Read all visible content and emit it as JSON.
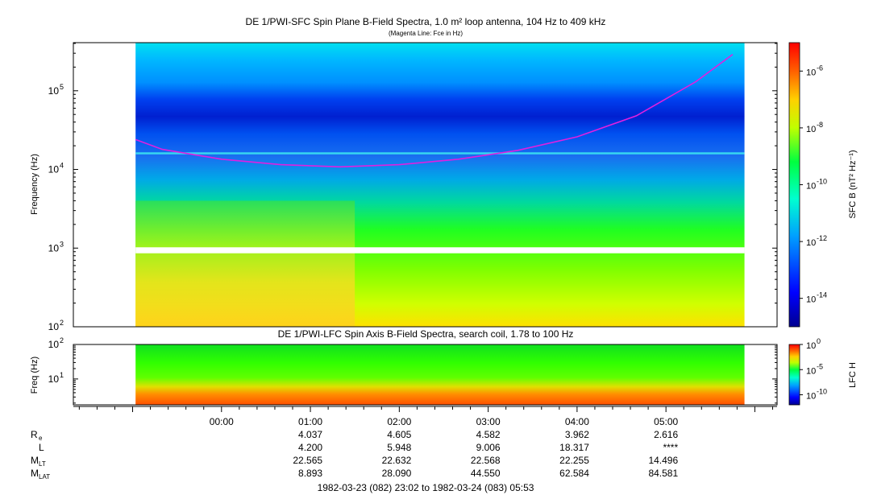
{
  "chart_data": [
    {
      "type": "heatmap",
      "title": "DE 1/PWI-SFC  Spin Plane B-Field Spectra, 1.0 m² loop antenna, 104 Hz to 409 kHz",
      "subtitle": "(Magenta Line: Fce in Hz)",
      "ylabel": "Frequency (Hz)",
      "yscale": "log",
      "ylim": [
        100,
        409000
      ],
      "y_ticks": [
        {
          "value": 100,
          "label": "10",
          "exp": "2"
        },
        {
          "value": 1000,
          "label": "10",
          "exp": "3"
        },
        {
          "value": 10000,
          "label": "10",
          "exp": "4"
        },
        {
          "value": 100000,
          "label": "10",
          "exp": "5"
        }
      ],
      "colorbar": {
        "label": "SFC B (nT² Hz⁻¹)",
        "scale": "log",
        "range": [
          1e-15,
          1e-05
        ],
        "ticks": [
          {
            "value": 1e-06,
            "label": "10",
            "exp": "-6"
          },
          {
            "value": 1e-08,
            "label": "10",
            "exp": "-8"
          },
          {
            "value": 1e-10,
            "label": "10",
            "exp": "-10"
          },
          {
            "value": 1e-12,
            "label": "10",
            "exp": "-12"
          },
          {
            "value": 1e-14,
            "label": "10",
            "exp": "-14"
          }
        ]
      },
      "data_start": "1982-03-23 23:02",
      "data_end": "1982-03-24 05:53",
      "fce_line_hz": [
        {
          "t": "23:02",
          "f": 24000
        },
        {
          "t": "23:20",
          "f": 18000
        },
        {
          "t": "00:00",
          "f": 13500
        },
        {
          "t": "00:40",
          "f": 11500
        },
        {
          "t": "01:20",
          "f": 10800
        },
        {
          "t": "02:00",
          "f": 11500
        },
        {
          "t": "02:40",
          "f": 13500
        },
        {
          "t": "03:20",
          "f": 17500
        },
        {
          "t": "04:00",
          "f": 26000
        },
        {
          "t": "04:40",
          "f": 48000
        },
        {
          "t": "05:20",
          "f": 130000
        },
        {
          "t": "05:45",
          "f": 290000
        }
      ],
      "legend": "none",
      "grid": false
    },
    {
      "type": "heatmap",
      "title": "DE 1/PWI-LFC  Spin Axis B-Field Spectra, search coil, 1.78 to 100 Hz",
      "ylabel": "Freq (Hz)",
      "yscale": "log",
      "ylim": [
        1.78,
        100
      ],
      "y_ticks": [
        {
          "value": 10,
          "label": "10",
          "exp": "1"
        },
        {
          "value": 100,
          "label": "10",
          "exp": "2"
        }
      ],
      "colorbar": {
        "label": "LFC H",
        "scale": "log",
        "range": [
          1e-12,
          1
        ],
        "ticks": [
          {
            "value": 1,
            "label": "10",
            "exp": "0"
          },
          {
            "value": 1e-05,
            "label": "10",
            "exp": "-5"
          },
          {
            "value": 1e-10,
            "label": "10",
            "exp": "-10"
          }
        ]
      },
      "legend": "none",
      "grid": false
    }
  ],
  "x_axis": {
    "range_start": "1982-03-23 22:20",
    "range_end": "1982-03-24 06:15",
    "tick_labels": [
      "00:00",
      "01:00",
      "02:00",
      "03:00",
      "04:00",
      "05:00"
    ],
    "tick_times": [
      "00:00",
      "01:00",
      "02:00",
      "03:00",
      "04:00",
      "05:00"
    ],
    "minor_step_minutes": 12
  },
  "ephemeris": [
    {
      "label": "R",
      "sub": "e",
      "values": [
        "4.037",
        "4.605",
        "4.582",
        "3.962",
        "2.616"
      ]
    },
    {
      "label": "L",
      "sub": "",
      "values": [
        "4.200",
        "5.948",
        "9.006",
        "18.317",
        "****"
      ]
    },
    {
      "label": "M",
      "sub": "LT",
      "values": [
        "22.565",
        "22.632",
        "22.568",
        "22.255",
        "14.496"
      ]
    },
    {
      "label": "M",
      "sub": "LAT",
      "values": [
        "8.893",
        "28.090",
        "44.550",
        "62.584",
        "84.581"
      ]
    }
  ],
  "ephemeris_times": [
    "01:00",
    "02:00",
    "03:00",
    "04:00",
    "05:00"
  ],
  "footer": "1982-03-23 (082) 23:02 to 1982-03-24 (083) 05:53",
  "colors": {
    "fce_line": "#e020e0",
    "frame": "#000000",
    "gap_line": "#ffffff"
  }
}
